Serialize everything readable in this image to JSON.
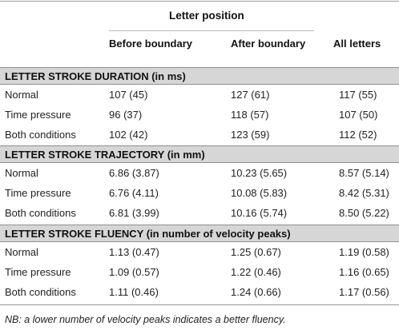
{
  "header": {
    "group_label": "Letter position",
    "columns": [
      "Before boundary",
      "After boundary",
      "All letters"
    ]
  },
  "sections": [
    {
      "title": "LETTER STROKE DURATION (in ms)",
      "rows": [
        {
          "label": "Normal",
          "values": [
            "107 (45)",
            "127 (61)",
            "117 (55)"
          ]
        },
        {
          "label": "Time pressure",
          "values": [
            "96 (37)",
            "118 (57)",
            "107 (50)"
          ]
        },
        {
          "label": "Both conditions",
          "values": [
            "102 (42)",
            "123 (59)",
            "112 (52)"
          ]
        }
      ]
    },
    {
      "title": "LETTER STROKE TRAJECTORY (in mm)",
      "rows": [
        {
          "label": "Normal",
          "values": [
            "6.86 (3.87)",
            "10.23 (5.65)",
            "8.57 (5.14)"
          ]
        },
        {
          "label": "Time pressure",
          "values": [
            "6.76 (4.11)",
            "10.08 (5.83)",
            "8.42 (5.31)"
          ]
        },
        {
          "label": "Both conditions",
          "values": [
            "6.81 (3.99)",
            "10.16 (5.74)",
            "8.50 (5.22)"
          ]
        }
      ]
    },
    {
      "title": "LETTER STROKE FLUENCY (in number of velocity peaks)",
      "rows": [
        {
          "label": "Normal",
          "values": [
            "1.13 (0.47)",
            "1.25 (0.67)",
            "1.19 (0.58)"
          ]
        },
        {
          "label": "Time pressure",
          "values": [
            "1.09 (0.57)",
            "1.22 (0.46)",
            "1.16 (0.65)"
          ]
        },
        {
          "label": "Both conditions",
          "values": [
            "1.11 (0.46)",
            "1.24 (0.66)",
            "1.17 (0.56)"
          ]
        }
      ]
    }
  ],
  "footnote": "NB: a lower number of velocity peaks indicates a better fluency."
}
